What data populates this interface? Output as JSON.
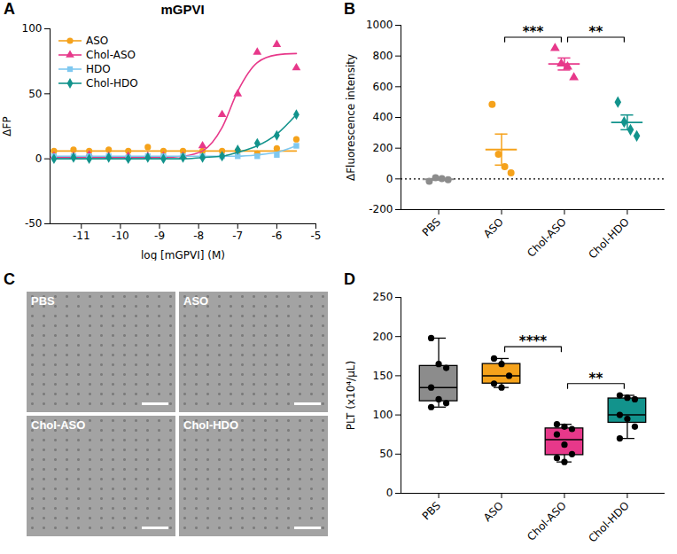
{
  "chart_data": [
    {
      "panel": "A",
      "type": "line",
      "title": "mGPVI",
      "x_label": "log [mGPVI] (M)",
      "y_label": "ΔFP",
      "x": [
        -11.7,
        -11.2,
        -10.8,
        -10.3,
        -9.8,
        -9.3,
        -8.9,
        -8.4,
        -7.9,
        -7.4,
        -7.0,
        -6.5,
        -6.0,
        -5.5
      ],
      "xlim": [
        -11.8,
        -5
      ],
      "xticks": [
        -11,
        -10,
        -9,
        -8,
        -7,
        -6,
        -5
      ],
      "ylim": [
        -50,
        100
      ],
      "yticks": [
        -50,
        0,
        50,
        100
      ],
      "grid": false,
      "legend": "top-left",
      "series": [
        {
          "name": "ASO",
          "color": "#f5a21b",
          "marker": "circle",
          "values": [
            6,
            7,
            6,
            7,
            6,
            9,
            6,
            6,
            6,
            6,
            6,
            4,
            8,
            15
          ],
          "fit": [
            6,
            6,
            6,
            6,
            6,
            6,
            6,
            6,
            6,
            6,
            6,
            6,
            6,
            6
          ]
        },
        {
          "name": "Chol-ASO",
          "color": "#e7388a",
          "marker": "triangle",
          "values": [
            2,
            2,
            3,
            2,
            2,
            2,
            2,
            2,
            10,
            34,
            50,
            82,
            88,
            70
          ],
          "fit": [
            1,
            1,
            1,
            1,
            1,
            1,
            1,
            2,
            6,
            24,
            52,
            74,
            80,
            81
          ]
        },
        {
          "name": "HDO",
          "color": "#7fc8f0",
          "marker": "square",
          "values": [
            2,
            2,
            2,
            2,
            1,
            2,
            2,
            2,
            2,
            2,
            2,
            2,
            3,
            10
          ],
          "fit": [
            2,
            2,
            2,
            2,
            2,
            2,
            2,
            2,
            2,
            2,
            2,
            3,
            5,
            10
          ]
        },
        {
          "name": "Chol-HDO",
          "color": "#12938c",
          "marker": "diamond",
          "values": [
            0,
            1,
            0,
            1,
            0,
            1,
            0,
            1,
            1,
            2,
            7,
            12,
            18,
            34
          ],
          "fit": [
            0,
            0,
            0,
            0,
            0,
            0,
            0,
            0,
            1,
            2,
            5,
            10,
            19,
            34
          ]
        }
      ]
    },
    {
      "panel": "B",
      "type": "scatter",
      "y_label": "ΔFluorescence intensity",
      "ylim": [
        -200,
        1000
      ],
      "yticks": [
        -200,
        0,
        200,
        400,
        600,
        800,
        1000
      ],
      "grid": false,
      "reference_line": 0,
      "groups": [
        {
          "name": "PBS",
          "color": "#8c8c8c",
          "marker": "circle",
          "values": [
            -15,
            8,
            2,
            -5
          ],
          "mean": -2.5,
          "sem": 4.9
        },
        {
          "name": "ASO",
          "color": "#f5a21b",
          "marker": "circle",
          "values": [
            485,
            160,
            80,
            40
          ],
          "mean": 191,
          "sem": 101
        },
        {
          "name": "Chol-ASO",
          "color": "#e7388a",
          "marker": "triangle",
          "values": [
            850,
            750,
            730,
            660
          ],
          "mean": 748,
          "sem": 39
        },
        {
          "name": "Chol-HDO",
          "color": "#12938c",
          "marker": "diamond",
          "values": [
            500,
            370,
            320,
            280
          ],
          "mean": 368,
          "sem": 48
        }
      ],
      "comparisons": [
        {
          "from": "ASO",
          "to": "Chol-ASO",
          "label": "***"
        },
        {
          "from": "Chol-ASO",
          "to": "Chol-HDO",
          "label": "**"
        }
      ]
    },
    {
      "panel": "C",
      "type": "image",
      "labels": [
        "PBS",
        "ASO",
        "Chol-ASO",
        "Chol-HDO"
      ]
    },
    {
      "panel": "D",
      "type": "box",
      "y_label": "PLT (x10⁴/μL)",
      "categories": [
        "PBS",
        "ASO",
        "Chol-ASO",
        "Chol-HDO"
      ],
      "colors": [
        "#8c8c8c",
        "#f5a21b",
        "#e7388a",
        "#12938c"
      ],
      "ylim": [
        0,
        250
      ],
      "yticks": [
        0,
        50,
        100,
        150,
        200,
        250
      ],
      "grid": false,
      "values": [
        [
          198,
          165,
          160,
          135,
          120,
          115,
          110
        ],
        [
          172,
          165,
          150,
          140,
          135
        ],
        [
          88,
          85,
          82,
          75,
          62,
          50,
          45,
          40
        ],
        [
          125,
          122,
          120,
          100,
          95,
          85,
          70
        ]
      ],
      "comparisons": [
        {
          "from": "ASO",
          "to": "Chol-ASO",
          "label": "****"
        },
        {
          "from": "Chol-ASO",
          "to": "Chol-HDO",
          "label": "**"
        }
      ]
    }
  ]
}
